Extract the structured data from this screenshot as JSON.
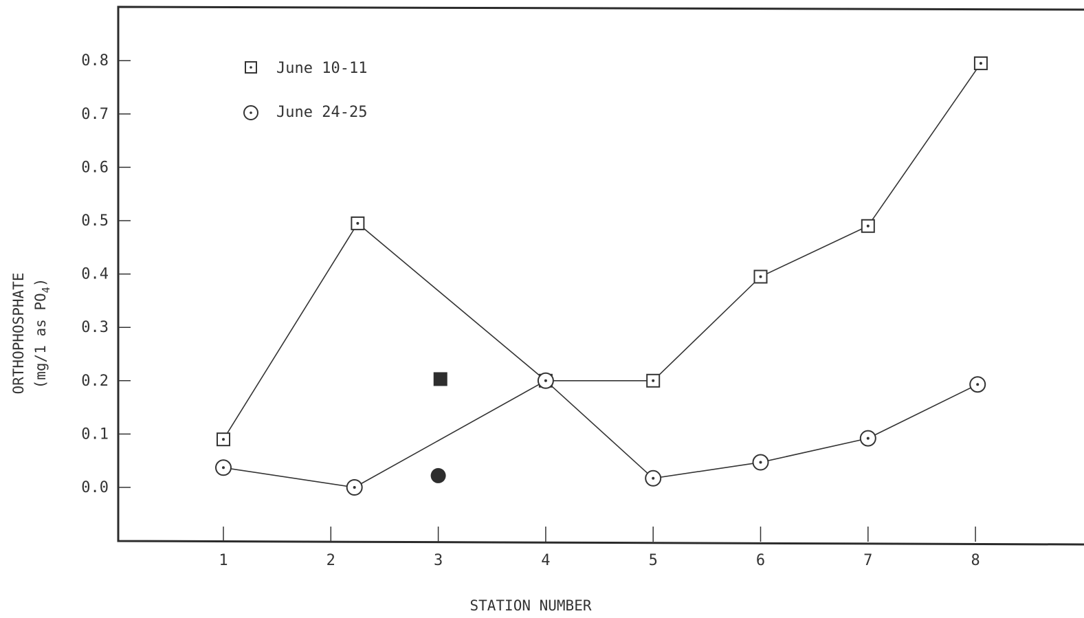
{
  "chart_data": {
    "type": "line",
    "xlabel": "STATION NUMBER",
    "ylabel_line1": "ORTHOPHOSPHATE",
    "ylabel_line2": "(mg/1 as PO",
    "ylabel_sub": "4",
    "ylabel_close": ")",
    "x_ticks": [
      "1",
      "2",
      "3",
      "4",
      "5",
      "6",
      "7",
      "8"
    ],
    "y_ticks": [
      "0.0",
      "0.1",
      "0.2",
      "0.3",
      "0.4",
      "0.5",
      "0.6",
      "0.7",
      "0.8"
    ],
    "ylim": [
      -0.1,
      0.9
    ],
    "xlim": [
      0,
      9.4
    ],
    "grid": false,
    "legend_position": "top-left",
    "series": [
      {
        "name": "June 10-11",
        "marker": "square-dot",
        "color": "#333333",
        "points": [
          {
            "x": 1,
            "y": 0.09
          },
          {
            "x": 2.25,
            "y": 0.495
          },
          {
            "x": 4,
            "y": 0.2
          },
          {
            "x": 5,
            "y": 0.2
          },
          {
            "x": 6,
            "y": 0.395
          },
          {
            "x": 7,
            "y": 0.49
          },
          {
            "x": 8.05,
            "y": 0.795
          }
        ]
      },
      {
        "name": "June 24-25",
        "marker": "circle-dot",
        "color": "#333333",
        "points": [
          {
            "x": 1,
            "y": 0.037
          },
          {
            "x": 2.22,
            "y": 0.0
          },
          {
            "x": 4,
            "y": 0.2
          },
          {
            "x": 5,
            "y": 0.017
          },
          {
            "x": 6,
            "y": 0.047
          },
          {
            "x": 7,
            "y": 0.092
          },
          {
            "x": 8.02,
            "y": 0.193
          }
        ]
      }
    ],
    "extra_points": [
      {
        "marker": "filled-square",
        "x": 3.02,
        "y": 0.203
      },
      {
        "marker": "filled-circle",
        "x": 3.0,
        "y": 0.022
      }
    ]
  }
}
